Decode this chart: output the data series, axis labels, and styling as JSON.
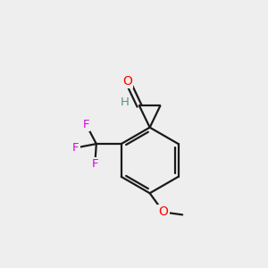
{
  "background_color": "#eeeeee",
  "bond_color": "#1a1a1a",
  "bond_width": 1.6,
  "atom_colors": {
    "O": "#ff0000",
    "H": "#5a9090",
    "F": "#dd00dd",
    "C": "#1a1a1a"
  },
  "figsize": [
    3.0,
    3.0
  ],
  "dpi": 100,
  "xlim": [
    0,
    10
  ],
  "ylim": [
    0,
    10
  ]
}
